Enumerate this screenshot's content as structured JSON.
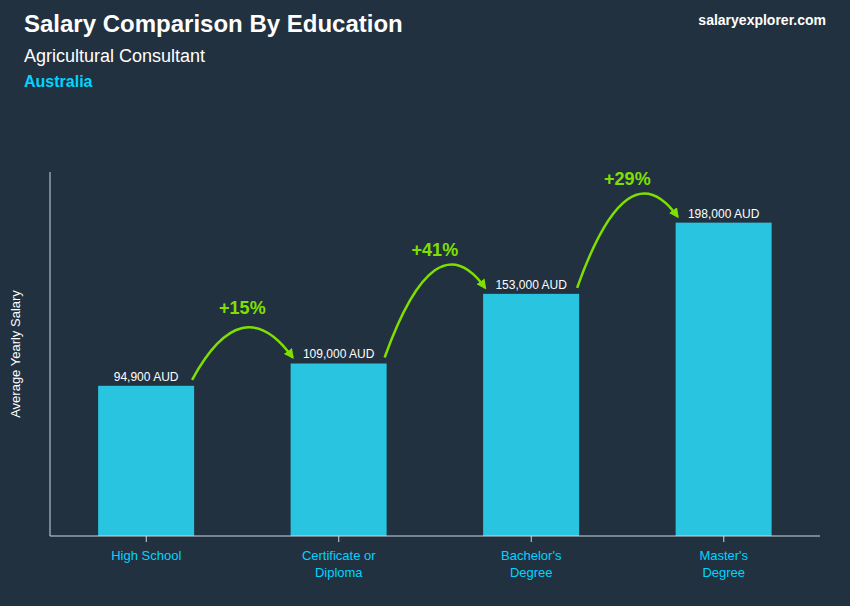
{
  "chart_data": {
    "type": "bar",
    "title": "Salary Comparison By Education",
    "subtitle": "Agricultural Consultant",
    "y_label": "Average Yearly Salary",
    "categories": [
      "High School",
      "Certificate or\nDiploma",
      "Bachelor's\nDegree",
      "Master's\nDegree"
    ],
    "values": [
      94900,
      109000,
      153000,
      198000
    ],
    "value_labels": [
      "94,900 AUD",
      "109,000 AUD",
      "153,000 AUD",
      "198,000 AUD"
    ],
    "data_labels": true,
    "color": "#29C4E0",
    "ylim": [
      0,
      230000
    ],
    "yticks": [],
    "tick_labels": "x",
    "grid": false,
    "annotations": [
      {
        "text": "Australia"
      },
      {
        "text": "salaryexplorer.com"
      },
      {
        "text": "+15%",
        "from": "High School",
        "to": "Certificate or\nDiploma",
        "color": "#7FE000"
      },
      {
        "text": "+41%",
        "from": "Certificate or\nDiploma",
        "to": "Bachelor's\nDegree",
        "color": "#7FE000"
      },
      {
        "text": "+29%",
        "from": "Bachelor's\nDegree",
        "to": "Master's\nDegree",
        "color": "#7FE000"
      }
    ]
  }
}
